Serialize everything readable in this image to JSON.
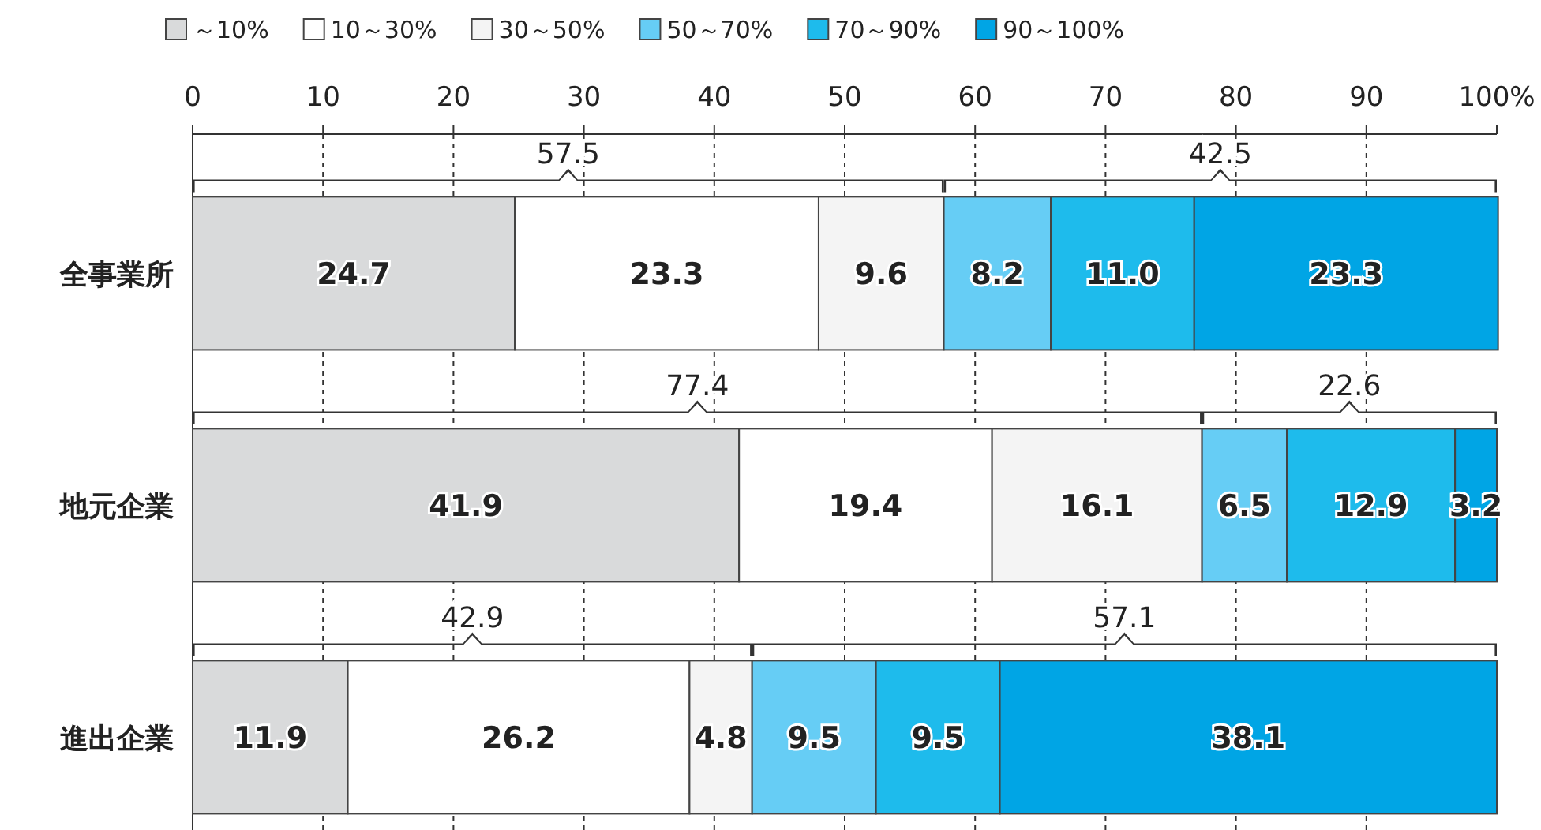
{
  "chart_data": {
    "type": "bar",
    "orientation": "horizontal",
    "stacked": true,
    "categories": [
      "全事業所",
      "地元企業",
      "進出企業"
    ],
    "series": [
      {
        "name": "～10%",
        "color": "#d9dadb",
        "values": [
          24.7,
          41.9,
          11.9
        ],
        "value_labels": [
          "24.7",
          "41.9",
          "11.9"
        ]
      },
      {
        "name": "10～30%",
        "color": "#ffffff",
        "values": [
          23.3,
          19.4,
          26.2
        ],
        "value_labels": [
          "23.3",
          "19.4",
          "26.2"
        ]
      },
      {
        "name": "30～50%",
        "color": "#f4f4f4",
        "values": [
          9.6,
          16.1,
          4.8
        ],
        "value_labels": [
          "9.6",
          "16.1",
          "4.8"
        ]
      },
      {
        "name": "50～70%",
        "color": "#66cdf5",
        "values": [
          8.2,
          6.5,
          9.5
        ],
        "value_labels": [
          "8.2",
          "6.5",
          "9.5"
        ]
      },
      {
        "name": "70～90%",
        "color": "#1ebbec",
        "values": [
          11.0,
          12.9,
          9.5
        ],
        "value_labels": [
          "11.0",
          "12.9",
          "9.5"
        ]
      },
      {
        "name": "90～100%",
        "color": "#00a5e5",
        "values": [
          23.3,
          3.2,
          38.1
        ],
        "value_labels": [
          "23.3",
          "3.2",
          "38.1"
        ]
      }
    ],
    "xlim": [
      0,
      100
    ],
    "xticks": [
      0,
      10,
      20,
      30,
      40,
      50,
      60,
      70,
      80,
      90,
      {
        "value": 100,
        "label": "100%"
      }
    ],
    "grid": "x",
    "legend": "top",
    "annotations": [
      "57.5",
      "42.5",
      "77.4",
      "22.6",
      "42.9",
      "57.1"
    ]
  }
}
